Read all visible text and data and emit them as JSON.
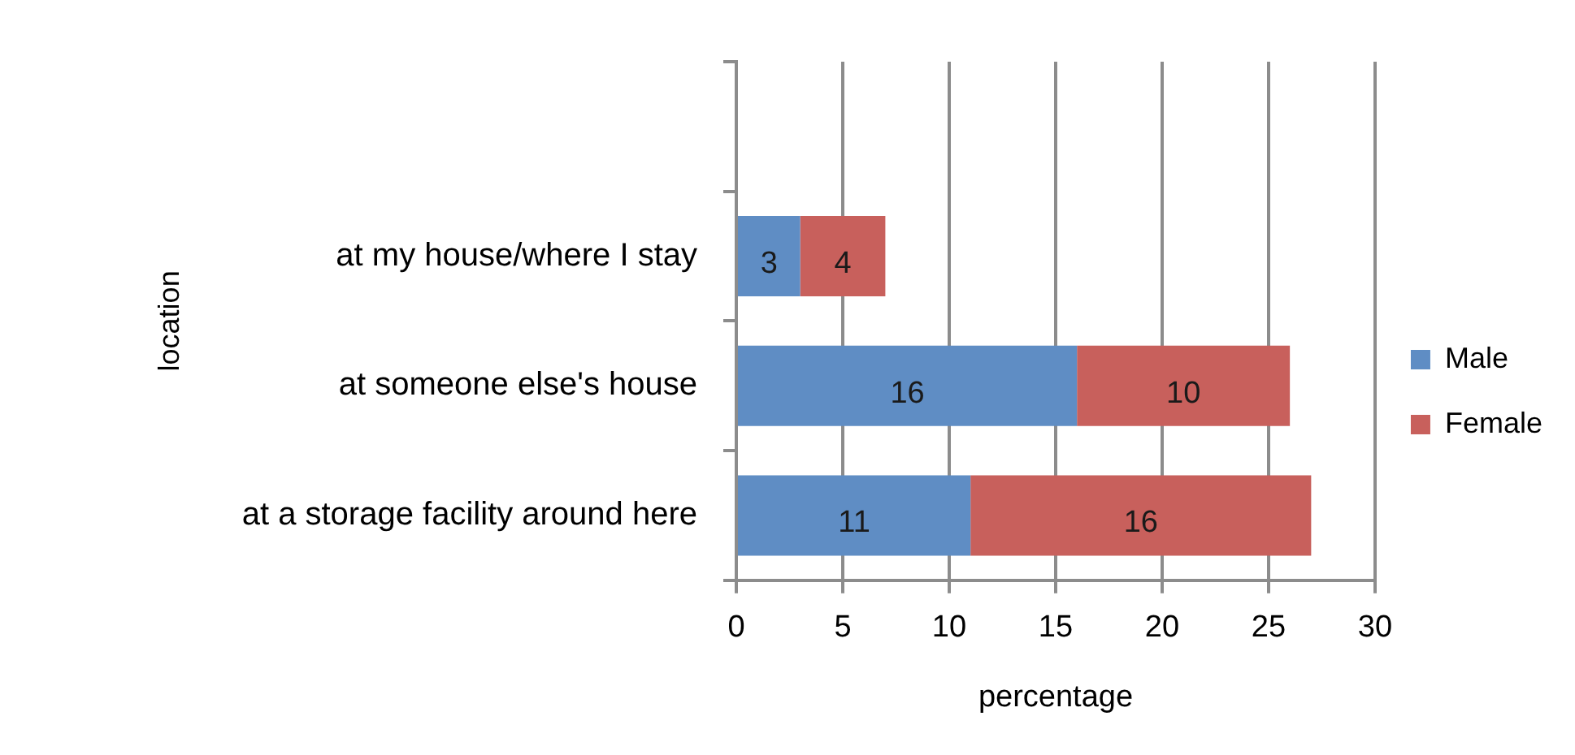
{
  "chart_data": {
    "type": "bar",
    "orientation": "horizontal",
    "stacked": true,
    "xlabel": "percentage",
    "ylabel": "location",
    "categories": [
      null,
      "at my house/where I stay",
      "at someone else's house",
      "at a storage facility around here"
    ],
    "series": [
      {
        "name": "Male",
        "color": "#5f8dc4",
        "values": [
          null,
          3,
          16,
          11
        ]
      },
      {
        "name": "Female",
        "color": "#c8605c",
        "values": [
          null,
          4,
          10,
          16
        ]
      }
    ],
    "xlim": [
      0,
      30
    ],
    "xticks": [
      0,
      5,
      10,
      15,
      20,
      25,
      30
    ],
    "grid": "x",
    "legend": "right",
    "data_labels": true
  }
}
